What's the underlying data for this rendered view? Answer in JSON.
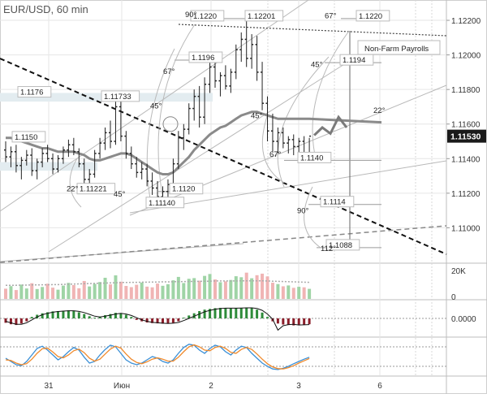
{
  "title": "EUR/USD, 60 min",
  "colors": {
    "background": "#ffffff",
    "grid": "#e6e6e6",
    "candle": "#222222",
    "ma": "#8a8a8a",
    "trendline": "#111111",
    "fan": "#b9b9b9",
    "fib_line": "#9a9a9a",
    "forecast": "#7a7a7a",
    "price_tag_bg": "#1a1a1a",
    "price_tag_fg": "#ffffff",
    "vol_up": "#9fd4a6",
    "vol_down": "#f0b4b4",
    "osc_up": "#2e8b3a",
    "osc_down": "#8b1e2a",
    "stoch_k": "#3a8fd6",
    "stoch_d": "#f08a2c"
  },
  "chart_data": [
    {
      "type": "candlestick",
      "title": "EUR/USD, 60 min",
      "ylim": [
        1.108,
        1.1228
      ],
      "y_ticks": [
        "1.11000",
        "1.11200",
        "1.11400",
        "1.11600",
        "1.11800",
        "1.12000",
        "1.12200"
      ],
      "y_tick_values": [
        1.11,
        1.112,
        1.114,
        1.116,
        1.118,
        1.12,
        1.122
      ],
      "x_ticks": [
        "31",
        "Июн",
        "2",
        "3",
        "6"
      ],
      "x_tick_values": [
        60,
        150,
        260,
        368,
        468
      ],
      "current_price": "1.11530",
      "price_labels": [
        {
          "text": "1.1150",
          "x": 18,
          "y": 1.1151
        },
        {
          "text": "1.1176",
          "x": 25,
          "y": 1.1177
        },
        {
          "text": "1.11733",
          "x": 128,
          "y": 1.11745
        },
        {
          "text": "1.11221",
          "x": 98,
          "y": 1.1121
        },
        {
          "text": "1.11140",
          "x": 183,
          "y": 1.1113
        },
        {
          "text": "1.1120",
          "x": 212,
          "y": 1.1121
        },
        {
          "text": "1.1196",
          "x": 236,
          "y": 1.1197
        },
        {
          "text": "1.1220",
          "x": 238,
          "y": 1.1221
        },
        {
          "text": "1.12201",
          "x": 305,
          "y": 1.1221
        },
        {
          "text": "1.1220",
          "x": 442,
          "y": 1.1221
        },
        {
          "text": "1.1194",
          "x": 422,
          "y": 1.11955
        },
        {
          "text": "1.1140",
          "x": 370,
          "y": 1.1139
        },
        {
          "text": "1.1114",
          "x": 398,
          "y": 1.11135
        },
        {
          "text": "1.1088",
          "x": 405,
          "y": 1.10885
        }
      ],
      "angle_labels": [
        {
          "text": "90°",
          "x": 228,
          "y": 1.1222
        },
        {
          "text": "67°",
          "x": 201,
          "y": 1.1189
        },
        {
          "text": "45°",
          "x": 185,
          "y": 1.1169
        },
        {
          "text": "22°",
          "x": 82,
          "y": 1.1121
        },
        {
          "text": "45°",
          "x": 140,
          "y": 1.1118
        },
        {
          "text": "67°",
          "x": 400,
          "y": 1.12213
        },
        {
          "text": "45°",
          "x": 383,
          "y": 1.1193
        },
        {
          "text": "45°",
          "x": 309,
          "y": 1.11635
        },
        {
          "text": "22°",
          "x": 460,
          "y": 1.11665
        },
        {
          "text": "67°",
          "x": 332,
          "y": 1.1141
        },
        {
          "text": "90°",
          "x": 366,
          "y": 1.11085
        },
        {
          "text": "112°",
          "x": 395,
          "y": 1.10865
        }
      ],
      "annotations": [
        "Non-Farm Payrolls"
      ],
      "candles": [
        [
          1.1145,
          1.115,
          1.1138,
          1.1141
        ],
        [
          1.1141,
          1.1147,
          1.1135,
          1.1144
        ],
        [
          1.1144,
          1.1148,
          1.1132,
          1.1136
        ],
        [
          1.1136,
          1.1141,
          1.1128,
          1.1139
        ],
        [
          1.1139,
          1.1145,
          1.1136,
          1.1142
        ],
        [
          1.1142,
          1.1146,
          1.113,
          1.1133
        ],
        [
          1.1133,
          1.114,
          1.1128,
          1.1138
        ],
        [
          1.1138,
          1.1146,
          1.1135,
          1.1143
        ],
        [
          1.1143,
          1.1148,
          1.1138,
          1.114
        ],
        [
          1.114,
          1.1143,
          1.1131,
          1.1134
        ],
        [
          1.1134,
          1.1142,
          1.1132,
          1.114
        ],
        [
          1.114,
          1.1147,
          1.1137,
          1.1145
        ],
        [
          1.1145,
          1.1151,
          1.1141,
          1.1148
        ],
        [
          1.1148,
          1.1152,
          1.1142,
          1.1144
        ],
        [
          1.1144,
          1.1146,
          1.1135,
          1.1137
        ],
        [
          1.1137,
          1.114,
          1.1124,
          1.1128
        ],
        [
          1.1128,
          1.1134,
          1.1122,
          1.1131
        ],
        [
          1.1131,
          1.1145,
          1.1129,
          1.1143
        ],
        [
          1.1143,
          1.1152,
          1.114,
          1.1149
        ],
        [
          1.1149,
          1.1158,
          1.1145,
          1.1155
        ],
        [
          1.1155,
          1.1162,
          1.1146,
          1.115
        ],
        [
          1.115,
          1.1174,
          1.1148,
          1.117
        ],
        [
          1.117,
          1.1173,
          1.115,
          1.1153
        ],
        [
          1.1153,
          1.1156,
          1.114,
          1.1143
        ],
        [
          1.1143,
          1.1147,
          1.1134,
          1.1137
        ],
        [
          1.1137,
          1.1141,
          1.1129,
          1.1132
        ],
        [
          1.1132,
          1.1138,
          1.1128,
          1.1134
        ],
        [
          1.1134,
          1.1137,
          1.1124,
          1.1127
        ],
        [
          1.1127,
          1.1132,
          1.1119,
          1.1123
        ],
        [
          1.1123,
          1.1127,
          1.1115,
          1.1118
        ],
        [
          1.1118,
          1.1124,
          1.1114,
          1.1121
        ],
        [
          1.1121,
          1.1128,
          1.1116,
          1.1125
        ],
        [
          1.1125,
          1.114,
          1.1122,
          1.1137
        ],
        [
          1.1137,
          1.1156,
          1.1134,
          1.1152
        ],
        [
          1.1152,
          1.116,
          1.1145,
          1.1157
        ],
        [
          1.1157,
          1.1172,
          1.1154,
          1.1169
        ],
        [
          1.1169,
          1.118,
          1.1162,
          1.1176
        ],
        [
          1.1176,
          1.1182,
          1.1158,
          1.1164
        ],
        [
          1.1164,
          1.1187,
          1.116,
          1.1183
        ],
        [
          1.1183,
          1.1197,
          1.1178,
          1.1193
        ],
        [
          1.1193,
          1.1196,
          1.1181,
          1.1185
        ],
        [
          1.1185,
          1.119,
          1.1176,
          1.1188
        ],
        [
          1.1188,
          1.1194,
          1.118,
          1.1182
        ],
        [
          1.1182,
          1.1192,
          1.1178,
          1.119
        ],
        [
          1.119,
          1.1206,
          1.1186,
          1.1203
        ],
        [
          1.1203,
          1.1213,
          1.1196,
          1.1209
        ],
        [
          1.1209,
          1.122,
          1.1193,
          1.1198
        ],
        [
          1.1198,
          1.1212,
          1.1192,
          1.1206
        ],
        [
          1.1206,
          1.1211,
          1.1185,
          1.119
        ],
        [
          1.119,
          1.1196,
          1.1168,
          1.1172
        ],
        [
          1.1172,
          1.1176,
          1.115,
          1.1156
        ],
        [
          1.1156,
          1.1166,
          1.1144,
          1.115
        ],
        [
          1.115,
          1.1158,
          1.1143,
          1.1155
        ],
        [
          1.1155,
          1.1158,
          1.1146,
          1.1149
        ],
        [
          1.1149,
          1.1153,
          1.1143,
          1.1151
        ],
        [
          1.1151,
          1.1154,
          1.1142,
          1.1147
        ],
        [
          1.1147,
          1.1152,
          1.1141,
          1.115
        ],
        [
          1.115,
          1.1153,
          1.1138,
          1.1142
        ],
        [
          1.1142,
          1.1152,
          1.114,
          1.1153
        ]
      ],
      "ma": [
        1.1152,
        1.1152,
        1.1151,
        1.115,
        1.1149,
        1.1148,
        1.1147,
        1.1146,
        1.1146,
        1.1145,
        1.1144,
        1.1144,
        1.1144,
        1.1144,
        1.1143,
        1.1142,
        1.114,
        1.1139,
        1.1139,
        1.114,
        1.1141,
        1.1142,
        1.1143,
        1.1143,
        1.1142,
        1.114,
        1.1138,
        1.1136,
        1.1134,
        1.1132,
        1.1131,
        1.1131,
        1.1132,
        1.1135,
        1.1138,
        1.1141,
        1.1145,
        1.1148,
        1.1151,
        1.1154,
        1.1156,
        1.1158,
        1.1159,
        1.1161,
        1.1163,
        1.1165,
        1.1166,
        1.1167,
        1.1167,
        1.1166,
        1.1165,
        1.1164,
        1.1163,
        1.1163,
        1.1163,
        1.1163,
        1.1163,
        1.1163,
        1.1163
      ],
      "forecast_path": [
        [
          1.11535
        ],
        [
          1.1158
        ],
        [
          1.11545
        ],
        [
          1.1164
        ],
        [
          1.1158
        ]
      ]
    },
    {
      "type": "bar",
      "name": "volume",
      "y_ticks": [
        "20K",
        "0"
      ],
      "ylim": [
        0,
        20000
      ],
      "values": [
        6000,
        7500,
        5200,
        8400,
        6100,
        9200,
        5800,
        7000,
        8900,
        6600,
        5400,
        7800,
        9400,
        8100,
        6200,
        10500,
        7300,
        8800,
        9900,
        12400,
        8500,
        13800,
        10100,
        7600,
        6900,
        8300,
        9600,
        7200,
        6800,
        9000,
        7700,
        8600,
        10900,
        12900,
        9300,
        11800,
        12200,
        10700,
        13500,
        14600,
        11400,
        9800,
        10300,
        11100,
        13300,
        12700,
        15400,
        12100,
        13900,
        14800,
        13200,
        9500,
        8700,
        7400,
        7900,
        6500,
        7100,
        6800,
        5900
      ],
      "avg": [
        8000,
        8000,
        8000,
        8100,
        8100,
        8200,
        8200,
        8300,
        8300,
        8400,
        8400,
        8500,
        8600,
        8700,
        8800,
        8900,
        9000,
        9100,
        9200,
        9300,
        9400,
        9500,
        9600,
        9600,
        9700,
        9700,
        9800,
        9800,
        9900,
        9900,
        10000,
        10000,
        10100,
        10100,
        10200,
        10200,
        10300,
        10300,
        10400,
        10400,
        10500,
        10500,
        10500,
        10500,
        10500,
        10600,
        10600,
        10600,
        10600,
        10600,
        10500,
        10400,
        10300,
        10200,
        10100,
        10000,
        9900,
        9800,
        9700
      ]
    },
    {
      "type": "bar",
      "name": "oscillator",
      "y_ticks": [
        "0.0000"
      ],
      "ylim": [
        -1,
        1
      ],
      "values": [
        -0.3,
        -0.4,
        -0.45,
        -0.35,
        -0.2,
        0.1,
        0.25,
        0.35,
        0.42,
        0.48,
        0.5,
        0.52,
        0.55,
        0.5,
        0.42,
        0.3,
        0.15,
        0.05,
        0.12,
        0.22,
        0.3,
        0.38,
        0.35,
        0.25,
        0.1,
        -0.1,
        -0.2,
        -0.28,
        -0.32,
        -0.34,
        -0.36,
        -0.35,
        -0.3,
        -0.2,
        0.05,
        0.2,
        0.35,
        0.5,
        0.6,
        0.65,
        0.7,
        0.72,
        0.7,
        0.68,
        0.7,
        0.72,
        0.75,
        0.7,
        0.6,
        0.4,
        0.1,
        -0.2,
        -0.35,
        -0.42,
        -0.45,
        -0.48,
        -0.46,
        -0.44,
        -0.4
      ],
      "signal": [
        -0.2,
        -0.3,
        -0.4,
        -0.4,
        -0.3,
        -0.1,
        0.1,
        0.25,
        0.35,
        0.42,
        0.47,
        0.5,
        0.52,
        0.52,
        0.48,
        0.4,
        0.28,
        0.15,
        0.1,
        0.15,
        0.22,
        0.3,
        0.35,
        0.3,
        0.2,
        0.05,
        -0.1,
        -0.2,
        -0.27,
        -0.3,
        -0.33,
        -0.35,
        -0.33,
        -0.28,
        -0.15,
        0.0,
        0.15,
        0.3,
        0.45,
        0.55,
        0.62,
        0.67,
        0.7,
        0.7,
        0.7,
        0.71,
        0.72,
        0.72,
        0.68,
        0.55,
        0.3,
        -0.05,
        -0.8,
        -0.5,
        -0.42,
        -0.4,
        -0.45,
        -0.44,
        -0.42
      ]
    },
    {
      "type": "line",
      "name": "stochastic",
      "ylim": [
        0,
        100
      ],
      "levels": [
        20,
        80
      ],
      "series": [
        {
          "values": [
            45,
            35,
            25,
            22,
            35,
            55,
            75,
            82,
            70,
            55,
            40,
            50,
            65,
            78,
            70,
            48,
            30,
            35,
            55,
            72,
            85,
            80,
            60,
            40,
            30,
            25,
            30,
            40,
            50,
            45,
            35,
            30,
            40,
            60,
            78,
            88,
            85,
            70,
            60,
            75,
            85,
            80,
            65,
            55,
            70,
            82,
            78,
            60,
            45,
            30,
            20,
            12,
            10,
            14,
            20,
            28,
            35,
            42,
            48
          ]
        },
        {
          "values": [
            40,
            38,
            30,
            25,
            28,
            42,
            60,
            74,
            76,
            64,
            50,
            46,
            55,
            68,
            73,
            62,
            45,
            36,
            42,
            58,
            73,
            82,
            76,
            58,
            42,
            32,
            28,
            34,
            42,
            46,
            42,
            36,
            36,
            48,
            65,
            80,
            86,
            80,
            70,
            68,
            78,
            82,
            75,
            63,
            60,
            72,
            78,
            72,
            58,
            42,
            28,
            18,
            13,
            12,
            16,
            22,
            30,
            37,
            44
          ]
        }
      ]
    }
  ],
  "tab": {
    "label": "Non-Farm Payrolls"
  }
}
